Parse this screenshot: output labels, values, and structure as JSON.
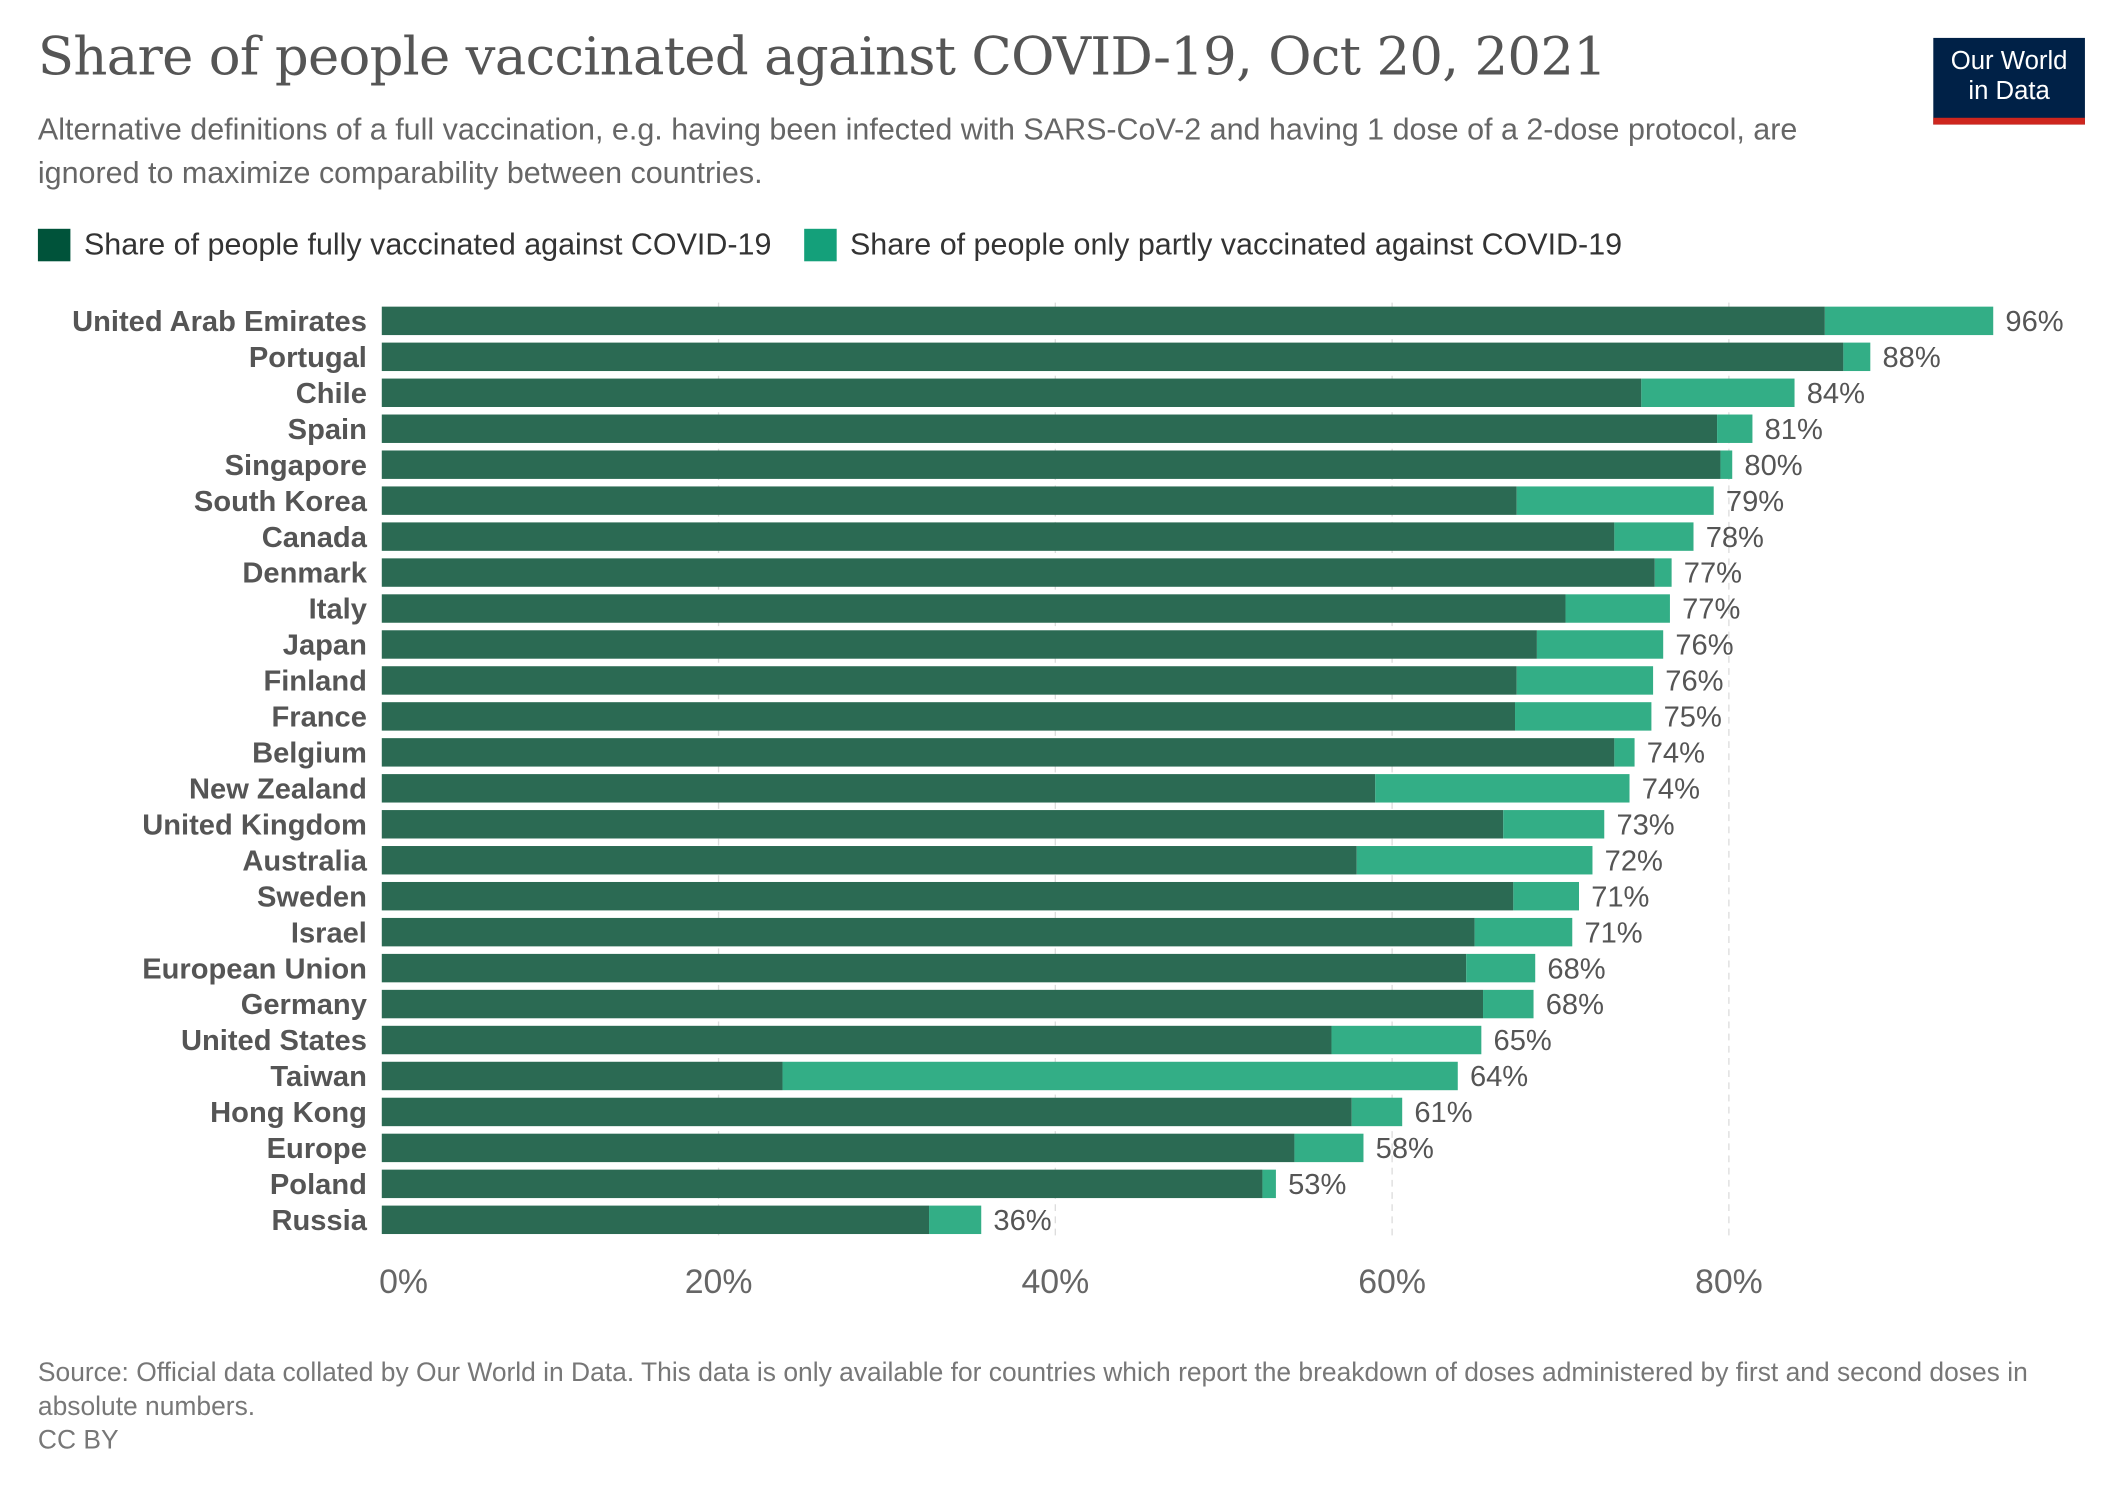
{
  "header": {
    "title": "Share of people vaccinated against COVID-19, Oct 20, 2021",
    "subtitle": "Alternative definitions of a full vaccination, e.g. having been infected with SARS-CoV-2 and having 1 dose of a 2-dose protocol, are ignored to maximize comparability between countries.",
    "logo_line1": "Our World",
    "logo_line2": "in Data"
  },
  "footer": {
    "source": "Source: Official data collated by Our World in Data. This data is only available for countries which report the breakdown of doses administered by first and second doses in absolute numbers.",
    "license": "CC BY"
  },
  "chart_data": {
    "type": "bar",
    "orientation": "horizontal",
    "stacked": true,
    "title": "Share of people vaccinated against COVID-19, Oct 20, 2021",
    "xlim": [
      0,
      100
    ],
    "xticks": [
      "0%",
      "20%",
      "40%",
      "60%",
      "80%"
    ],
    "xtick_values": [
      0,
      20,
      40,
      60,
      80
    ],
    "grid": true,
    "legend_placement": "top",
    "colors": {
      "full": "#2b6a53",
      "partial": "#33ae86",
      "legend_full": "#00533a",
      "legend_partial": "#14a07a"
    },
    "series": [
      {
        "name": "Share of people fully vaccinated against COVID-19",
        "key": "full"
      },
      {
        "name": "Share of people only partly vaccinated against COVID-19",
        "key": "partial"
      }
    ],
    "categories": [
      "United Arab Emirates",
      "Portugal",
      "Chile",
      "Spain",
      "Singapore",
      "South Korea",
      "Canada",
      "Denmark",
      "Italy",
      "Japan",
      "Finland",
      "France",
      "Belgium",
      "New Zealand",
      "United Kingdom",
      "Australia",
      "Sweden",
      "Israel",
      "European Union",
      "Germany",
      "United States",
      "Taiwan",
      "Hong Kong",
      "Europe",
      "Poland",
      "Russia"
    ],
    "full": [
      85.7,
      86.8,
      74.8,
      79.3,
      79.5,
      67.4,
      73.2,
      75.6,
      70.3,
      68.6,
      67.4,
      67.3,
      73.2,
      59.0,
      66.6,
      57.9,
      67.2,
      64.9,
      64.4,
      65.4,
      56.4,
      23.8,
      57.6,
      54.2,
      52.3,
      32.5
    ],
    "total": [
      95.7,
      88.4,
      83.9,
      81.4,
      80.2,
      79.1,
      77.9,
      76.6,
      76.5,
      76.1,
      75.5,
      75.4,
      74.4,
      74.1,
      72.6,
      71.9,
      71.1,
      70.7,
      68.5,
      68.4,
      65.3,
      63.9,
      60.6,
      58.3,
      53.1,
      35.6
    ],
    "labels": [
      "96%",
      "88%",
      "84%",
      "81%",
      "80%",
      "79%",
      "78%",
      "77%",
      "77%",
      "76%",
      "76%",
      "75%",
      "74%",
      "74%",
      "73%",
      "72%",
      "71%",
      "71%",
      "68%",
      "68%",
      "65%",
      "64%",
      "61%",
      "58%",
      "53%",
      "36%"
    ]
  }
}
